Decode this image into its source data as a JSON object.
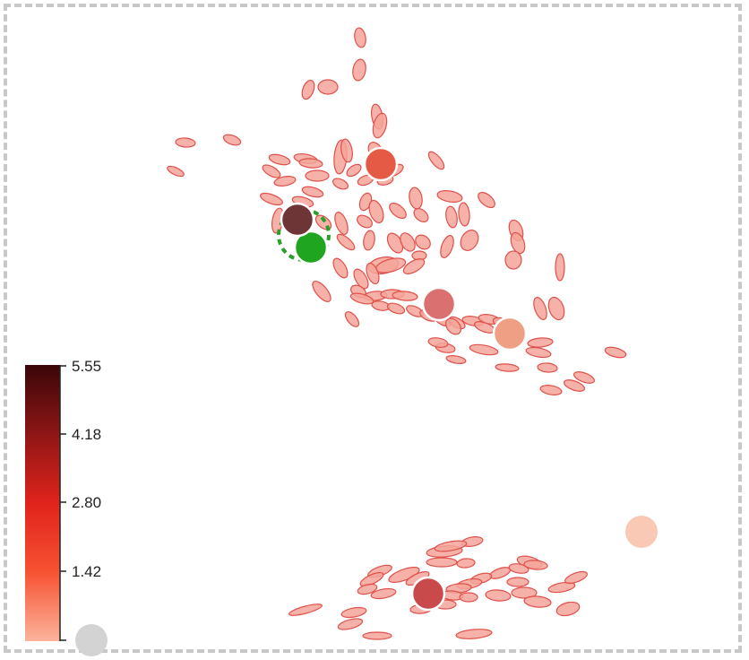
{
  "colors": {
    "frame_border": "#c8c8c8",
    "ellipse_fill": "#f4a49a",
    "ellipse_stroke": "#e0504a",
    "marker_outline": "#ffffff",
    "selection_ring": "#2aa02a",
    "null_marker": "#d3d3d3"
  },
  "colorbar": {
    "max_label": "5.55",
    "mid_high_label": "4.18",
    "mid_label": "2.80",
    "low_label": "1.42",
    "gradient_stops": [
      "#3a0608",
      "#8e1616",
      "#e0231c",
      "#f75232",
      "#fbb49c"
    ]
  },
  "markers": [
    {
      "id": "marker-top",
      "color": "#e45a45"
    },
    {
      "id": "marker-dark-selected",
      "color": "#6e3537"
    },
    {
      "id": "marker-green",
      "color": "#1fa51f"
    },
    {
      "id": "marker-middle",
      "color": "#da7070"
    },
    {
      "id": "marker-right",
      "color": "#ee9f84"
    },
    {
      "id": "marker-far-right",
      "color": "#f9c9b5"
    },
    {
      "id": "marker-bottom",
      "color": "#c84a4a"
    },
    {
      "id": "marker-null",
      "color": "#d3d3d3"
    }
  ]
}
